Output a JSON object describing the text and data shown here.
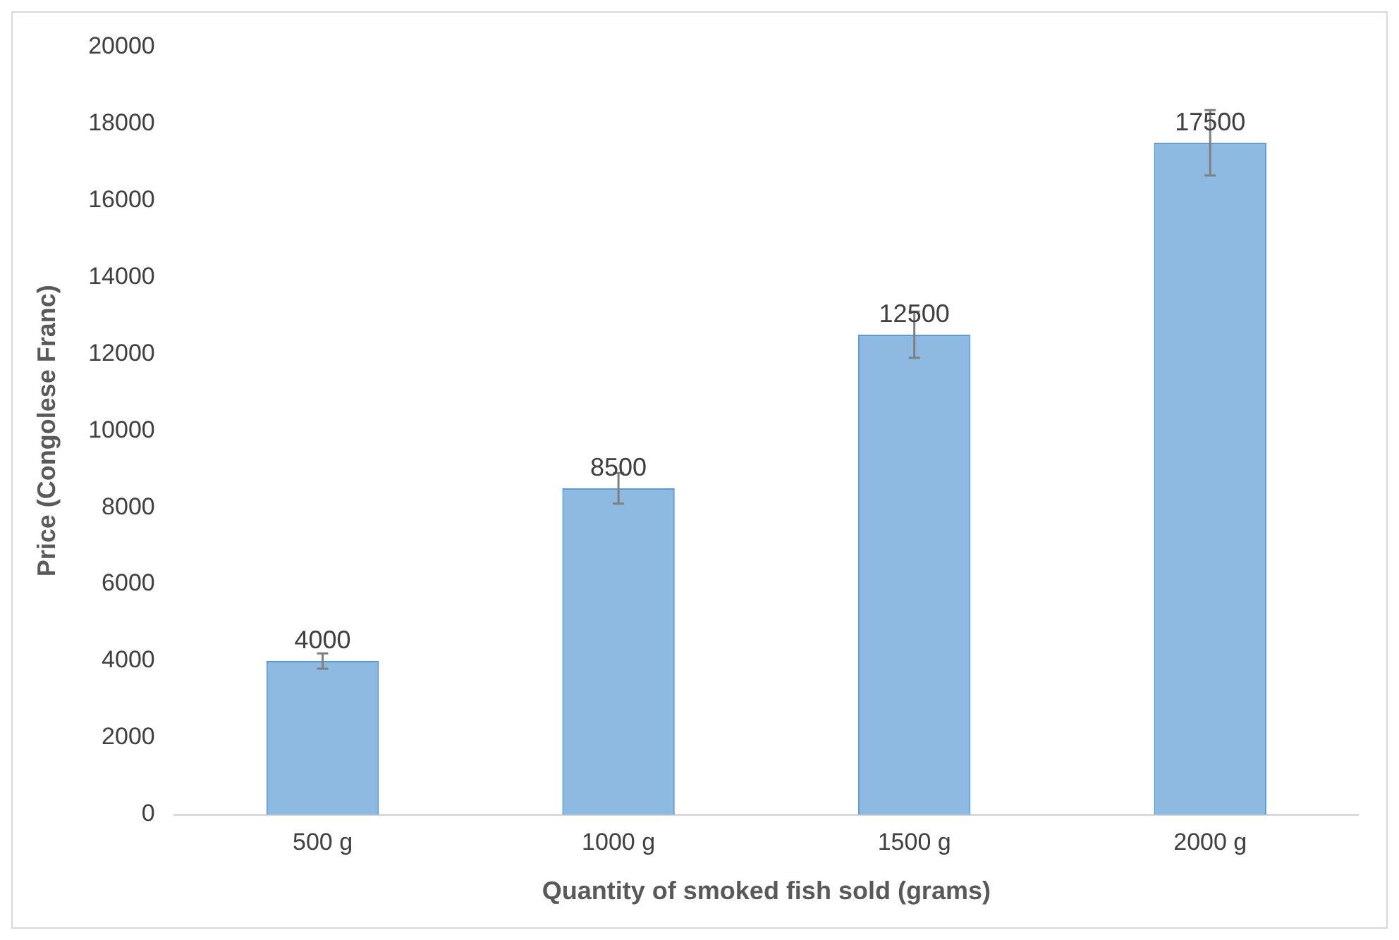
{
  "chart_data": {
    "type": "bar",
    "xlabel": "Quantity of smoked fish sold (grams)",
    "ylabel": "Price (Congolese Franc)",
    "categories": [
      "500 g",
      "1000 g",
      "1500 g",
      "2000 g"
    ],
    "values": [
      4000,
      8500,
      12500,
      17500
    ],
    "errors": [
      200,
      400,
      600,
      850
    ],
    "color": "#5b9bd5",
    "ylim": [
      0,
      20000
    ],
    "yticks": [
      0,
      2000,
      4000,
      6000,
      8000,
      10000,
      12000,
      14000,
      16000,
      18000,
      20000
    ],
    "grid": false,
    "legend": false,
    "data_labels": true
  }
}
